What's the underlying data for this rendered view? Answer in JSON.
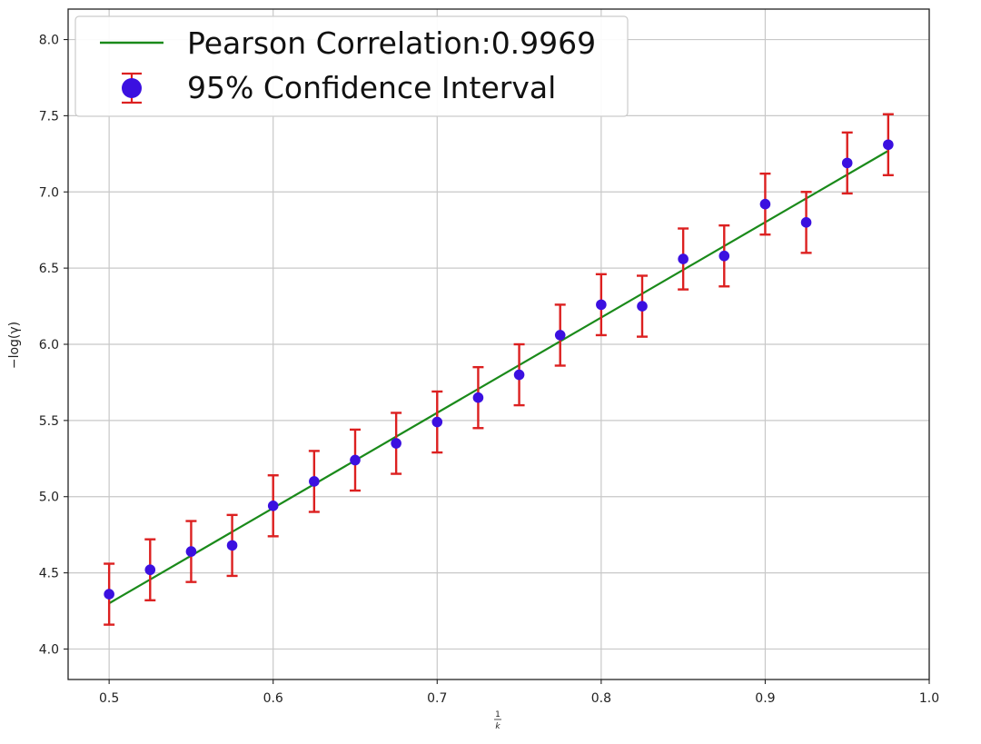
{
  "chart_data": {
    "type": "scatter",
    "x_label_fraction": {
      "numerator": "1",
      "denominator": "k"
    },
    "ylabel": "−log(γ)",
    "xlim": [
      0.475,
      1.0
    ],
    "ylim": [
      3.8,
      8.2
    ],
    "x_ticks": [
      {
        "value": 0.5,
        "label": "0.5"
      },
      {
        "value": 0.6,
        "label": "0.6"
      },
      {
        "value": 0.7,
        "label": "0.7"
      },
      {
        "value": 0.8,
        "label": "0.8"
      },
      {
        "value": 0.9,
        "label": "0.9"
      },
      {
        "value": 1.0,
        "label": "1.0"
      }
    ],
    "y_ticks": [
      {
        "value": 4.0,
        "label": "4.0"
      },
      {
        "value": 4.5,
        "label": "4.5"
      },
      {
        "value": 5.0,
        "label": "5.0"
      },
      {
        "value": 5.5,
        "label": "5.5"
      },
      {
        "value": 6.0,
        "label": "6.0"
      },
      {
        "value": 6.5,
        "label": "6.5"
      },
      {
        "value": 7.0,
        "label": "7.0"
      },
      {
        "value": 7.5,
        "label": "7.5"
      },
      {
        "value": 8.0,
        "label": "8.0"
      }
    ],
    "grid": true,
    "legend_position": "top-left",
    "legend": [
      {
        "label": "Pearson Correlation:0.9969",
        "kind": "line"
      },
      {
        "label": "95% Confidence Interval",
        "kind": "errorbar-marker"
      }
    ],
    "colors": {
      "fit_line": "#1a8a1a",
      "points": "#3b10e0",
      "error_bars": "#dc2020",
      "grid": "#c8c8c8",
      "axes": "#222222"
    },
    "fit_line": {
      "x": [
        0.5,
        0.975
      ],
      "y": [
        4.3,
        7.27
      ]
    },
    "series": [
      {
        "x": [
          0.5,
          0.525,
          0.55,
          0.575,
          0.6,
          0.625,
          0.65,
          0.675,
          0.7,
          0.725,
          0.75,
          0.775,
          0.8,
          0.825,
          0.85,
          0.875,
          0.9,
          0.925,
          0.95,
          0.975
        ],
        "y": [
          4.36,
          4.52,
          4.64,
          4.68,
          4.94,
          5.1,
          5.24,
          5.35,
          5.49,
          5.65,
          5.8,
          6.06,
          6.26,
          6.25,
          6.56,
          6.58,
          6.92,
          6.8,
          7.19,
          7.31
        ],
        "error": [
          0.2,
          0.2,
          0.2,
          0.2,
          0.2,
          0.2,
          0.2,
          0.2,
          0.2,
          0.2,
          0.2,
          0.2,
          0.2,
          0.2,
          0.2,
          0.2,
          0.2,
          0.2,
          0.2,
          0.2
        ]
      }
    ]
  }
}
